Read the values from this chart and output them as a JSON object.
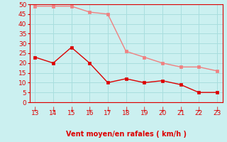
{
  "x": [
    13,
    14,
    15,
    16,
    17,
    18,
    19,
    20,
    21,
    22,
    23
  ],
  "y_rafales": [
    49,
    49,
    49,
    46,
    45,
    26,
    23,
    20,
    18,
    18,
    16
  ],
  "y_moyen": [
    23,
    20,
    28,
    20,
    10,
    12,
    10,
    11,
    9,
    5,
    5
  ],
  "color_rafales": "#f08080",
  "color_moyen": "#dd0000",
  "bg_color": "#cbf0f0",
  "grid_color": "#a8dede",
  "xlabel": "Vent moyen/en rafales ( km/h )",
  "xlabel_color": "#dd0000",
  "tick_color": "#dd0000",
  "spine_color": "#dd0000",
  "ylim": [
    0,
    50
  ],
  "xlim": [
    13,
    23
  ],
  "yticks": [
    0,
    5,
    10,
    15,
    20,
    25,
    30,
    35,
    40,
    45,
    50
  ],
  "xticks": [
    13,
    14,
    15,
    16,
    17,
    18,
    19,
    20,
    21,
    22,
    23
  ],
  "marker_size": 3,
  "line_width": 1.0
}
